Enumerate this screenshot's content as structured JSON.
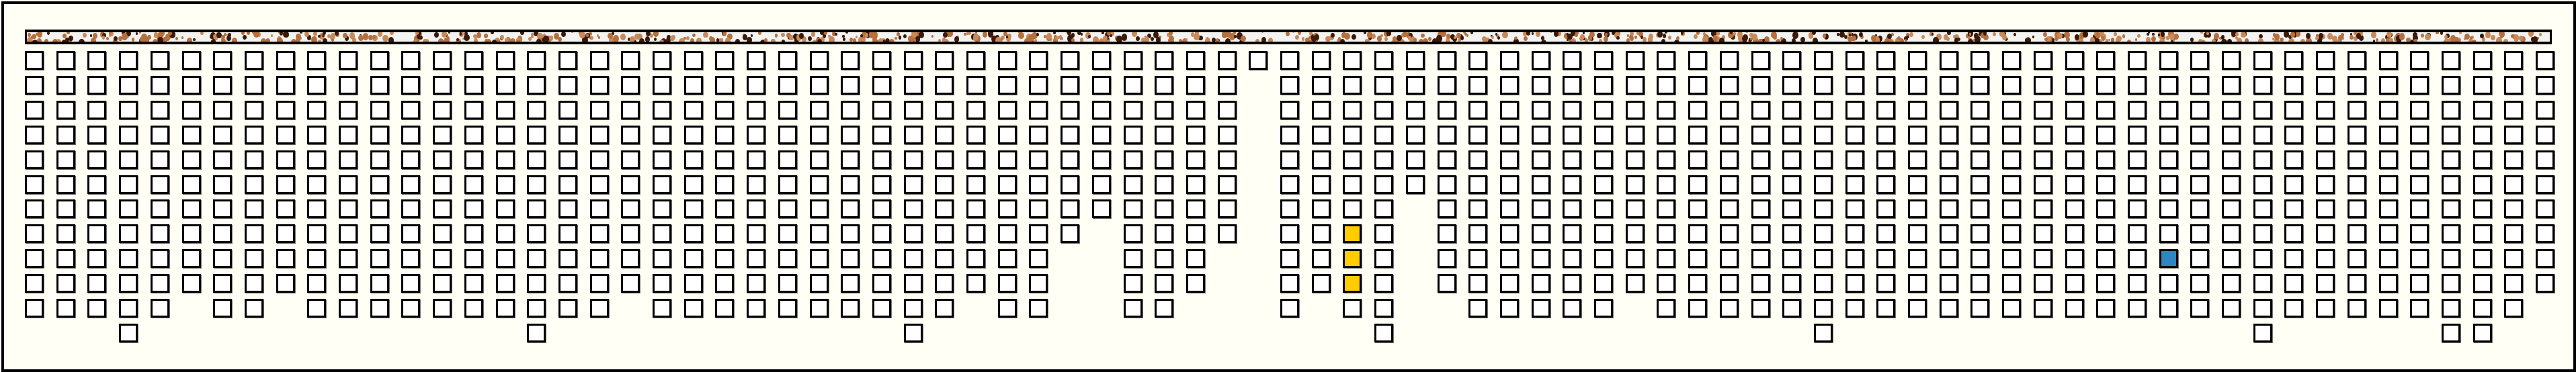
{
  "board": {
    "column_heights": [
      11,
      11,
      11,
      12,
      11,
      10,
      11,
      11,
      10,
      11,
      11,
      11,
      11,
      11,
      11,
      11,
      12,
      11,
      11,
      10,
      11,
      11,
      11,
      11,
      11,
      11,
      11,
      11,
      12,
      11,
      10,
      11,
      11,
      8,
      7,
      11,
      11,
      10,
      8,
      1,
      11,
      10,
      11,
      12,
      6,
      10,
      11,
      11,
      11,
      11,
      11,
      10,
      11,
      11,
      11,
      11,
      11,
      12,
      11,
      11,
      11,
      11,
      11,
      11,
      11,
      11,
      11,
      11,
      11,
      11,
      11,
      12,
      11,
      11,
      11,
      11,
      11,
      12,
      12,
      11,
      10
    ],
    "highlighted_cells": [
      {
        "column": 42,
        "row": 7,
        "color": "#ffcc00"
      },
      {
        "column": 42,
        "row": 8,
        "color": "#ffcc00"
      },
      {
        "column": 42,
        "row": 9,
        "color": "#ffcc00"
      },
      {
        "column": 68,
        "row": 8,
        "color": "#2e86c1"
      }
    ],
    "empty_cell_color": "#ffffff",
    "cell_border_color": "#000000",
    "background_color": "#fffff5"
  },
  "top_strip": {
    "texture": "speckled",
    "speckle_colors": [
      "#3b1a0c",
      "#b5703e",
      "#c98a5a"
    ],
    "base_color": "#f3f3f1"
  }
}
